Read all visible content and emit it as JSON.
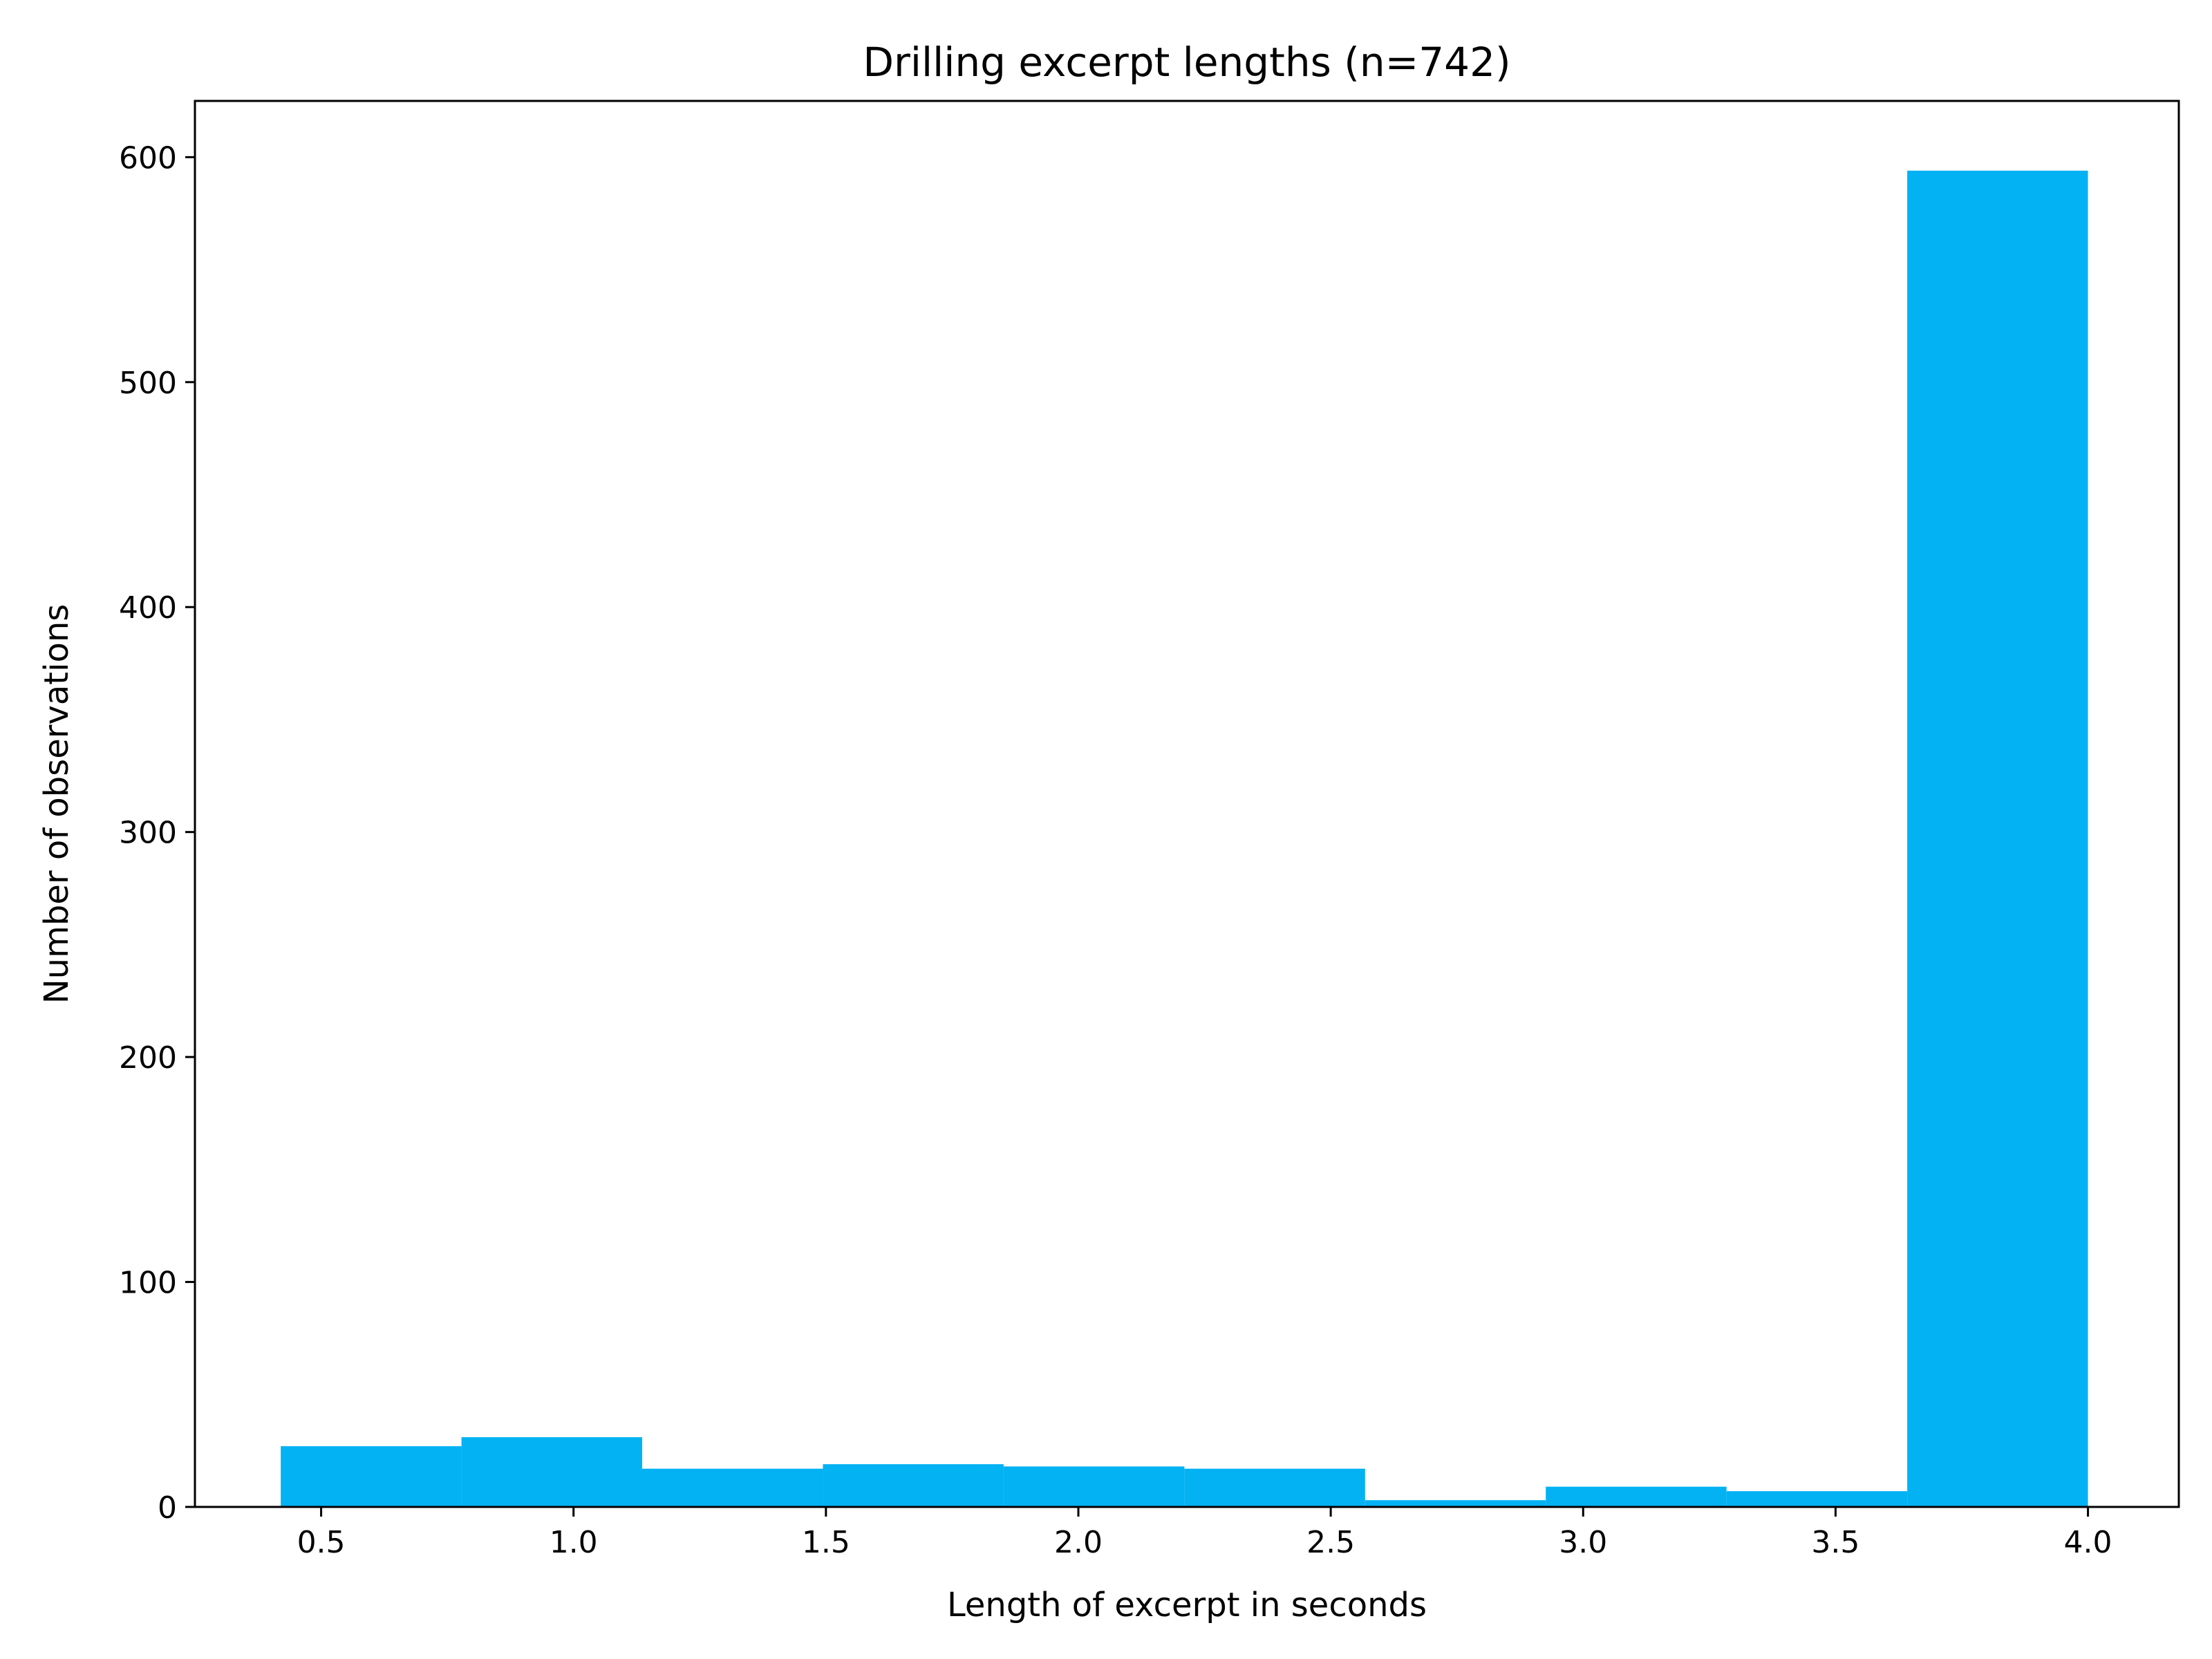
{
  "chart_data": {
    "type": "bar",
    "title": "Drilling excerpt lengths (n=742)",
    "xlabel": "Length of excerpt in seconds",
    "ylabel": "Number of observations",
    "xlim": [
      0.25,
      4.18
    ],
    "ylim": [
      0,
      625
    ],
    "xticks": [
      0.5,
      1.0,
      1.5,
      2.0,
      2.5,
      3.0,
      3.5,
      4.0
    ],
    "xtick_labels": [
      "0.5",
      "1.0",
      "1.5",
      "2.0",
      "2.5",
      "3.0",
      "3.5",
      "4.0"
    ],
    "yticks": [
      0,
      100,
      200,
      300,
      400,
      500,
      600
    ],
    "ytick_labels": [
      "0",
      "100",
      "200",
      "300",
      "400",
      "500",
      "600"
    ],
    "bin_edges": [
      0.42,
      0.778,
      1.136,
      1.494,
      1.852,
      2.21,
      2.568,
      2.926,
      3.284,
      3.642,
      4.0
    ],
    "values": [
      27,
      31,
      17,
      19,
      18,
      17,
      3,
      9,
      7,
      594
    ],
    "grid": false,
    "legend": "none",
    "colors": {
      "bar": "#03b2f3",
      "axis": "#000000"
    }
  }
}
